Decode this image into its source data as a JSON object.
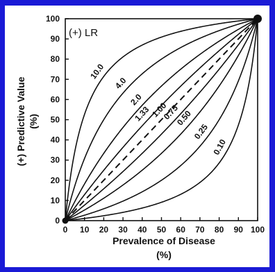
{
  "chart_data": {
    "type": "line",
    "title": "",
    "legend_title": "(+) LR",
    "xlabel_line1": "Prevalence of Disease",
    "xlabel_line2": "(%)",
    "ylabel_line1": "(+) Predictive Value",
    "ylabel_line2": "(%)",
    "xlim": [
      0,
      100
    ],
    "ylim": [
      0,
      100
    ],
    "x_ticks": [
      0,
      10,
      20,
      30,
      40,
      50,
      60,
      70,
      80,
      90,
      100
    ],
    "y_ticks": [
      0,
      10,
      20,
      30,
      40,
      50,
      60,
      70,
      80,
      90,
      100
    ],
    "x_tick_labels": [
      "0",
      "10",
      "20",
      "30",
      "40",
      "50",
      "60",
      "70",
      "80",
      "90",
      "100"
    ],
    "y_tick_labels": [
      "0",
      "10",
      "20",
      "30",
      "40",
      "50",
      "60",
      "70",
      "80",
      "90",
      "100"
    ],
    "series": [
      {
        "name": "10.0",
        "lr": 10.0,
        "dashed": false,
        "label_at_x": 20
      },
      {
        "name": "4.0",
        "lr": 4.0,
        "dashed": false,
        "label_at_x": 32
      },
      {
        "name": "2.0",
        "lr": 2.0,
        "dashed": false,
        "label_at_x": 40
      },
      {
        "name": "1.33",
        "lr": 1.33,
        "dashed": false,
        "label_at_x": 43
      },
      {
        "name": "1.00",
        "lr": 1.0,
        "dashed": true,
        "label_at_x": 52
      },
      {
        "name": "0.75",
        "lr": 0.75,
        "dashed": false,
        "label_at_x": 58
      },
      {
        "name": "0.50",
        "lr": 0.5,
        "dashed": false,
        "label_at_x": 65
      },
      {
        "name": "0.25",
        "lr": 0.25,
        "dashed": false,
        "label_at_x": 74
      },
      {
        "name": "0.10",
        "lr": 0.1,
        "dashed": false,
        "label_at_x": 84
      }
    ]
  }
}
